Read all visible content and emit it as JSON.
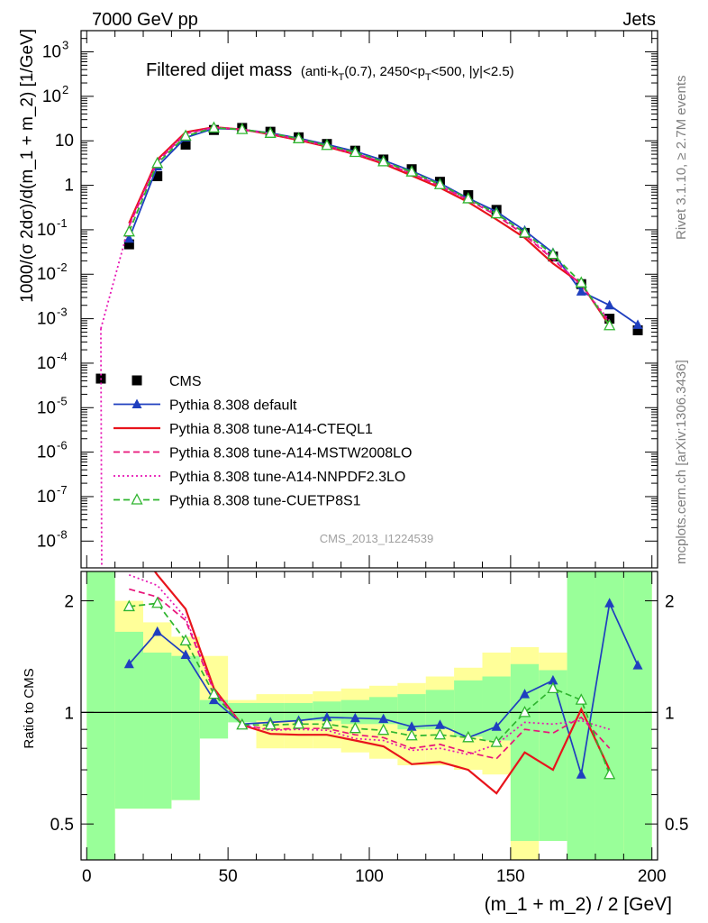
{
  "header": {
    "energy_label": "7000 GeV pp",
    "category_label": "Jets"
  },
  "side_labels": {
    "rivet": "Rivet 3.1.10, ≥ 2.7M events",
    "mcplots": "mcplots.cern.ch [arXiv:1306.3436]"
  },
  "analysis_id": "CMS_2013_I1224539",
  "chart_data": [
    {
      "type": "line",
      "title": "Filtered dijet mass",
      "subtitle": "(anti-k_T(0.7), 2450<p_T<500, |y|<2.5)",
      "xlabel": "(m_1 + m_2) / 2 [GeV]",
      "ylabel": "1000/(σ 2dσ)/d(m_1 + m_2) [1/GeV]",
      "log_y": true,
      "xlim": [
        -2,
        202
      ],
      "ylim": [
        2.5e-09,
        3000
      ],
      "x_ticks": [
        "0",
        "50",
        "100",
        "150",
        "200"
      ],
      "y_tick_exponents": [
        -8,
        -7,
        -6,
        -5,
        -4,
        -3,
        -2,
        -1,
        0,
        1,
        2,
        3
      ],
      "y_tick_labels": [
        "10^-8",
        "10^-7",
        "10^-6",
        "10^-5",
        "10^-4",
        "10^-3",
        "10^-2",
        "10^-1",
        "1",
        "10",
        "10^2",
        "10^3"
      ],
      "legend_position": "lower-left",
      "series": [
        {
          "name": "CMS",
          "color": "#000000",
          "style": "markers-square",
          "x": [
            5,
            15,
            25,
            35,
            45,
            55,
            65,
            75,
            85,
            95,
            105,
            115,
            125,
            135,
            145,
            155,
            165,
            175,
            185,
            195
          ],
          "y": [
            4.5e-05,
            0.047,
            1.6,
            8.2,
            17.5,
            19.5,
            16,
            12,
            8.5,
            6,
            3.8,
            2.3,
            1.2,
            0.6,
            0.28,
            0.085,
            0.025,
            0.006,
            0.001,
            0.00055
          ]
        },
        {
          "name": "Pythia 8.308 default",
          "color": "#1f3fbf",
          "style": "line-triangle",
          "x": [
            15,
            25,
            35,
            45,
            55,
            65,
            75,
            85,
            95,
            105,
            115,
            125,
            135,
            145,
            155,
            165,
            175,
            185,
            195
          ],
          "y": [
            0.063,
            2.65,
            11.8,
            18.9,
            18.0,
            15.0,
            11.4,
            8.3,
            5.8,
            3.65,
            2.1,
            1.11,
            0.51,
            0.255,
            0.096,
            0.0305,
            0.0041,
            0.002,
            0.00073
          ]
        },
        {
          "name": "Pythia 8.308 tune-A14-CTEQL1",
          "color": "#e8141c",
          "style": "solid",
          "x": [
            15,
            25,
            35,
            45,
            55,
            65,
            75,
            85,
            95,
            105,
            115,
            125,
            135,
            145,
            155,
            165,
            175,
            185
          ],
          "y": [
            0.14,
            3.8,
            15.6,
            20.3,
            18.0,
            14.0,
            10.4,
            7.4,
            4.95,
            3.05,
            1.65,
            0.88,
            0.42,
            0.17,
            0.066,
            0.0175,
            0.0061,
            0.0007
          ]
        },
        {
          "name": "Pythia 8.308 tune-A14-MSTW2008LO",
          "color": "#e8147a",
          "style": "dashed",
          "x": [
            15,
            25,
            35,
            45,
            55,
            65,
            75,
            85,
            95,
            105,
            115,
            125,
            135,
            145,
            155,
            165,
            175,
            185
          ],
          "y": [
            0.12,
            3.4,
            14.5,
            20.0,
            18.0,
            14.4,
            10.9,
            7.7,
            5.2,
            3.25,
            1.85,
            0.98,
            0.47,
            0.21,
            0.076,
            0.0215,
            0.0058,
            0.0008
          ]
        },
        {
          "name": "Pythia 8.308 tune-A14-NNPDF2.3LO",
          "color": "#e614b4",
          "style": "dotted",
          "x": [
            5,
            15,
            25,
            35,
            45,
            55,
            65,
            75,
            85,
            95,
            105,
            115,
            125,
            135,
            145,
            155,
            165,
            175,
            185
          ],
          "y": [
            0.0006,
            0.125,
            3.5,
            14.8,
            20.1,
            18.0,
            14.3,
            10.8,
            7.6,
            5.1,
            3.2,
            1.82,
            0.96,
            0.46,
            0.23,
            0.08,
            0.023,
            0.0055,
            0.0009
          ]
        },
        {
          "name": "Pythia 8.308 tune-CUETP8S1",
          "color": "#2fb52f",
          "style": "dashed-open-triangle",
          "x": [
            15,
            25,
            35,
            45,
            55,
            65,
            75,
            85,
            95,
            105,
            115,
            125,
            135,
            145,
            155,
            165,
            175,
            185
          ],
          "y": [
            0.09,
            3.1,
            12.8,
            19.5,
            18.0,
            14.8,
            11.2,
            7.9,
            5.5,
            3.4,
            2.0,
            1.04,
            0.5,
            0.23,
            0.085,
            0.028,
            0.0064,
            0.0007
          ]
        }
      ]
    },
    {
      "type": "line",
      "title": "",
      "ylabel": "Ratio to CMS",
      "xlabel": "(m_1 + m_2) / 2 [GeV]",
      "log_y": true,
      "xlim": [
        -2,
        202
      ],
      "ylim": [
        0.4,
        2.4
      ],
      "y_ticks": [
        "0.5",
        "1",
        "2"
      ],
      "reference_line": 1,
      "uncertainty_bands": {
        "edges": [
          0,
          10,
          20,
          30,
          40,
          50,
          60,
          70,
          80,
          90,
          100,
          110,
          120,
          130,
          140,
          150,
          160,
          170,
          180,
          190,
          200
        ],
        "stat_syst_lo": [
          0.4,
          0.55,
          0.55,
          0.58,
          0.85,
          0.94,
          0.95,
          0.95,
          0.95,
          0.93,
          0.93,
          0.9,
          0.9,
          0.86,
          0.84,
          0.45,
          0.45,
          0.3,
          0.3,
          0.3
        ],
        "stat_syst_hi": [
          2.45,
          1.65,
          1.45,
          1.42,
          1.08,
          1.06,
          1.06,
          1.06,
          1.07,
          1.08,
          1.1,
          1.12,
          1.15,
          1.22,
          1.25,
          1.35,
          1.3,
          2.6,
          2.6,
          2.6
        ],
        "total_lo": [
          0.4,
          0.55,
          0.55,
          0.58,
          0.9,
          1.0,
          0.8,
          0.8,
          0.8,
          0.78,
          0.75,
          0.72,
          0.72,
          0.7,
          0.68,
          0.4,
          0.45,
          0.3,
          0.3,
          0.3
        ],
        "total_hi": [
          2.45,
          2.0,
          1.75,
          1.6,
          1.42,
          1.08,
          1.12,
          1.12,
          1.14,
          1.16,
          1.18,
          1.2,
          1.25,
          1.32,
          1.45,
          1.5,
          1.45,
          2.6,
          2.6,
          2.6
        ]
      },
      "band_colors": {
        "inner": "#99ff99",
        "outer": "#ffff99"
      },
      "series": [
        {
          "name": "Pythia 8.308 default",
          "color": "#1f3fbf",
          "x": [
            15,
            25,
            35,
            45,
            55,
            65,
            75,
            85,
            95,
            105,
            115,
            125,
            135,
            145,
            155,
            165,
            175,
            185,
            195
          ],
          "y": [
            1.35,
            1.65,
            1.43,
            1.08,
            0.93,
            0.94,
            0.95,
            0.97,
            0.965,
            0.96,
            0.915,
            0.925,
            0.855,
            0.915,
            1.12,
            1.22,
            0.68,
            1.97,
            1.34
          ]
        },
        {
          "name": "Pythia 8.308 tune-A14-CTEQL1",
          "color": "#e8141c",
          "x": [
            15,
            25,
            35,
            45,
            55,
            65,
            75,
            85,
            95,
            105,
            115,
            125,
            135,
            145,
            155,
            165,
            175,
            185
          ],
          "y": [
            3.0,
            2.35,
            1.9,
            1.16,
            0.925,
            0.875,
            0.87,
            0.87,
            0.84,
            0.81,
            0.725,
            0.735,
            0.7,
            0.605,
            0.78,
            0.7,
            1.02,
            0.7
          ]
        },
        {
          "name": "Pythia 8.308 tune-A14-MSTW2008LO",
          "color": "#e8147a",
          "x": [
            15,
            25,
            35,
            45,
            55,
            65,
            75,
            85,
            95,
            105,
            115,
            125,
            135,
            145,
            155,
            165,
            175,
            185
          ],
          "y": [
            2.15,
            2.05,
            1.77,
            1.14,
            0.925,
            0.9,
            0.905,
            0.905,
            0.87,
            0.855,
            0.8,
            0.82,
            0.78,
            0.75,
            0.9,
            0.88,
            0.97,
            0.8
          ]
        },
        {
          "name": "Pythia 8.308 tune-A14-NNPDF2.3LO",
          "color": "#e614b4",
          "x": [
            15,
            25,
            35,
            45,
            55,
            65,
            75,
            85,
            95,
            105,
            115,
            125,
            135,
            145,
            155,
            165,
            175,
            185
          ],
          "y": [
            2.35,
            2.2,
            1.8,
            1.15,
            0.925,
            0.895,
            0.9,
            0.895,
            0.85,
            0.84,
            0.79,
            0.8,
            0.77,
            0.82,
            0.94,
            0.93,
            0.95,
            0.9
          ]
        },
        {
          "name": "Pythia 8.308 tune-CUETP8S1",
          "color": "#2fb52f",
          "x": [
            15,
            25,
            35,
            45,
            55,
            65,
            75,
            85,
            95,
            105,
            115,
            125,
            135,
            145,
            155,
            165,
            175,
            185
          ],
          "y": [
            1.93,
            1.97,
            1.56,
            1.12,
            0.925,
            0.925,
            0.93,
            0.93,
            0.905,
            0.895,
            0.865,
            0.87,
            0.855,
            0.83,
            1.0,
            1.16,
            1.08,
            0.68
          ]
        }
      ]
    }
  ]
}
